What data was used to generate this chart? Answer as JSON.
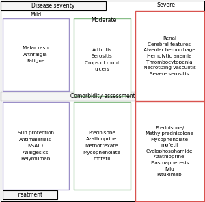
{
  "title_disease": "Disease severity",
  "title_comorbidity": "Comorbidity assessment",
  "title_treatment": "Treatment",
  "col1_header": "Mild",
  "col2_header": "Moderate",
  "col3_header": "Severe",
  "box1_lines": [
    "Malar rash",
    "Arthralgia",
    "Fatigue"
  ],
  "box2_lines": [
    "Arthritis",
    "Serositis",
    "Crops of mout",
    "ulcers"
  ],
  "box3_lines": [
    "Renal",
    "Cerebral features",
    "Alveolar hemorrhage",
    "Hemolytic anemia",
    "Thrombocytopenia",
    "Necrotizing vasculitis",
    "Severe serositis"
  ],
  "box4_lines": [
    "Sun protection",
    "Antimalarials",
    "NSAID",
    "Analgesics",
    "Belymumab"
  ],
  "box5_lines": [
    "Prednisone",
    "Azathioprine",
    "Methotrexate",
    "Mycophenolate",
    "mofetil"
  ],
  "box6_lines": [
    "Prednisone/",
    "Methylprednisolone",
    "Mycophenolate",
    "mofetil",
    "Cyclophosphamide",
    "Azathioprine",
    "Plasmapheresis",
    "IVIg",
    "Rituximab"
  ],
  "color_mild": "#9b8fc8",
  "color_moderate": "#8abf8a",
  "color_severe": "#d9534f",
  "bg_color": "#ffffff",
  "fontsize": 5.2
}
